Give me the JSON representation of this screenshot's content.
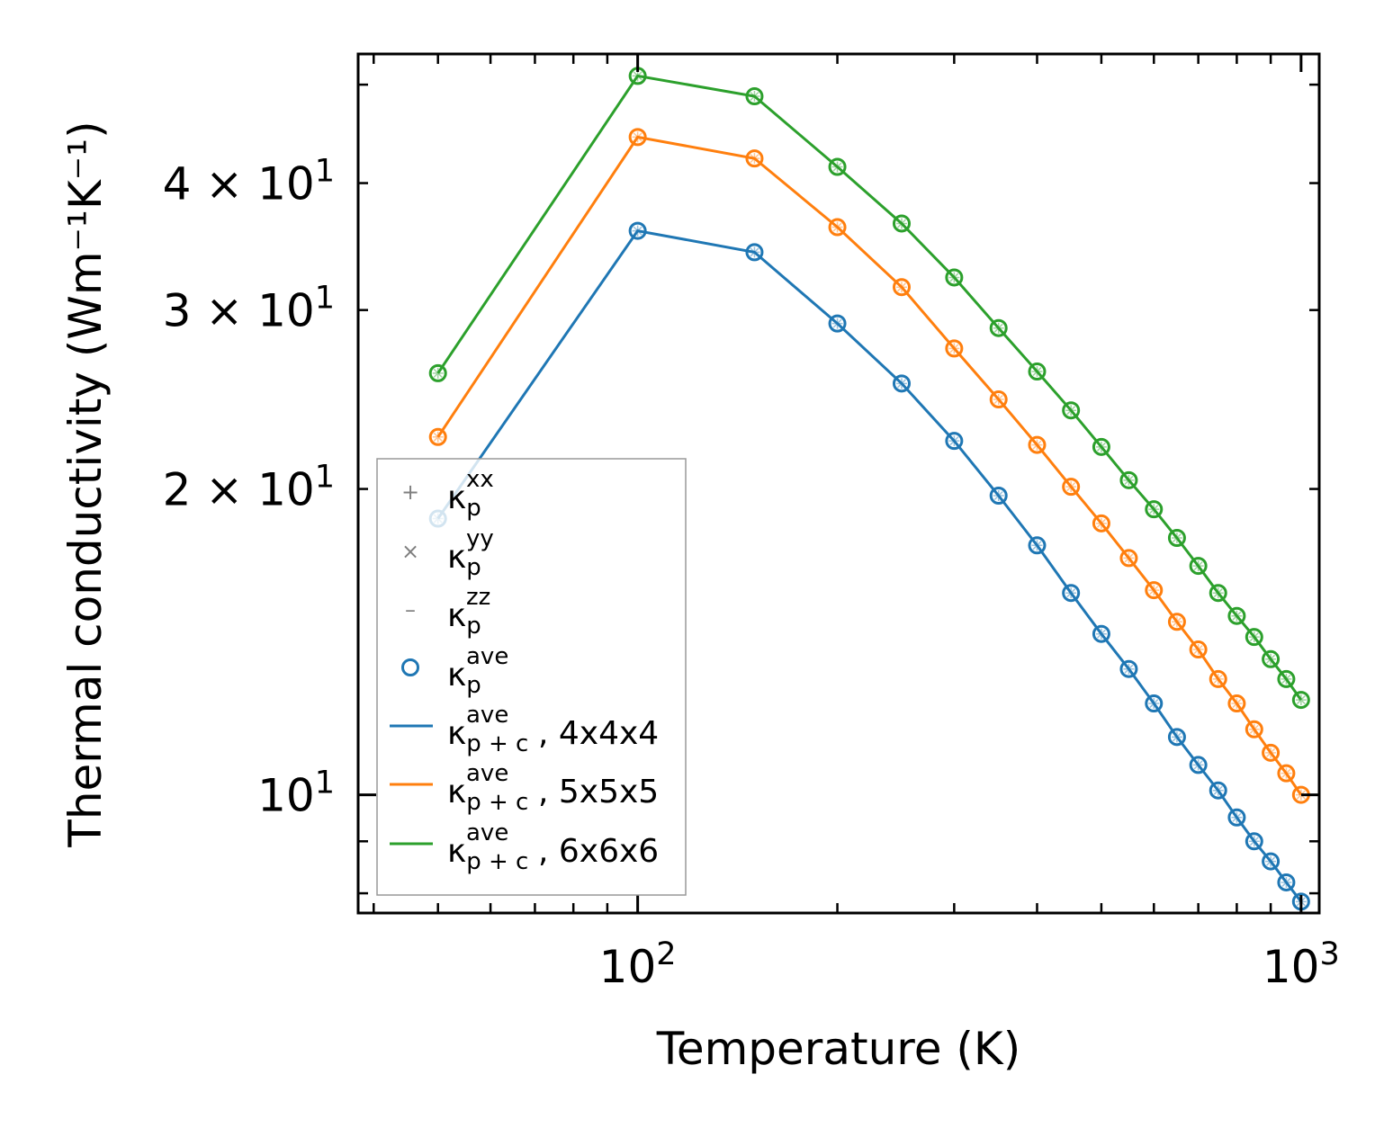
{
  "chart_data": {
    "type": "line",
    "xscale": "log",
    "yscale": "log",
    "xlabel": "Temperature (K)",
    "ylabel": "Thermal conductivity (Wm⁻¹K⁻¹)",
    "xlim": [
      37.9,
      1065
    ],
    "ylim": [
      7.65,
      53.6
    ],
    "x_ticks": [
      {
        "value": 100,
        "base": "10",
        "exp": "2"
      },
      {
        "value": 1000,
        "base": "10",
        "exp": "3"
      }
    ],
    "y_ticks": [
      {
        "value": 10,
        "mant": "",
        "base": "10",
        "exp": "1"
      },
      {
        "value": 20,
        "mant": "2 × ",
        "base": "10",
        "exp": "1"
      },
      {
        "value": 30,
        "mant": "3 × ",
        "base": "10",
        "exp": "1"
      },
      {
        "value": 40,
        "mant": "4 × ",
        "base": "10",
        "exp": "1"
      }
    ],
    "x": [
      50,
      100,
      150,
      200,
      250,
      300,
      350,
      400,
      450,
      500,
      550,
      600,
      650,
      700,
      750,
      800,
      850,
      900,
      950,
      1000
    ],
    "series": [
      {
        "name": "4x4x4",
        "color": "#1f77b4",
        "values": [
          18.7,
          35.9,
          34.2,
          29.1,
          25.4,
          22.3,
          19.7,
          17.6,
          15.8,
          14.4,
          13.3,
          12.3,
          11.4,
          10.7,
          10.1,
          9.5,
          9.0,
          8.6,
          8.2,
          7.85
        ]
      },
      {
        "name": "5x5x5",
        "color": "#ff7f0e",
        "values": [
          22.5,
          44.4,
          42.3,
          36.2,
          31.6,
          27.5,
          24.5,
          22.1,
          20.1,
          18.5,
          17.1,
          15.9,
          14.8,
          13.9,
          13.0,
          12.3,
          11.6,
          11.0,
          10.5,
          10.0
        ]
      },
      {
        "name": "6x6x6",
        "color": "#2ca02c",
        "values": [
          26.0,
          51.0,
          48.7,
          41.5,
          36.5,
          32.3,
          28.8,
          26.1,
          23.9,
          22.0,
          20.4,
          19.1,
          17.9,
          16.8,
          15.8,
          15.0,
          14.3,
          13.6,
          13.0,
          12.4
        ]
      }
    ],
    "legend": {
      "position": "lower-left",
      "entries": [
        {
          "symbol": "+",
          "base": "κ",
          "sub": "p",
          "sup": "xx",
          "suffix": "",
          "color": "#1f77b4"
        },
        {
          "symbol": "×",
          "base": "κ",
          "sub": "p",
          "sup": "yy",
          "suffix": "",
          "color": "#1f77b4"
        },
        {
          "symbol": "–",
          "base": "κ",
          "sub": "p",
          "sup": "zz",
          "suffix": "",
          "color": "#1f77b4"
        },
        {
          "symbol": "circle",
          "base": "κ",
          "sub": "p",
          "sup": "ave",
          "suffix": "",
          "color": "#1f77b4"
        },
        {
          "symbol": "line",
          "base": "κ",
          "sub": "p + c",
          "sup": "ave",
          "suffix": ", 4x4x4",
          "color": "#1f77b4"
        },
        {
          "symbol": "line",
          "base": "κ",
          "sub": "p + c",
          "sup": "ave",
          "suffix": ", 5x5x5",
          "color": "#ff7f0e"
        },
        {
          "symbol": "line",
          "base": "κ",
          "sub": "p + c",
          "sup": "ave",
          "suffix": ", 6x6x6",
          "color": "#2ca02c"
        }
      ]
    }
  }
}
